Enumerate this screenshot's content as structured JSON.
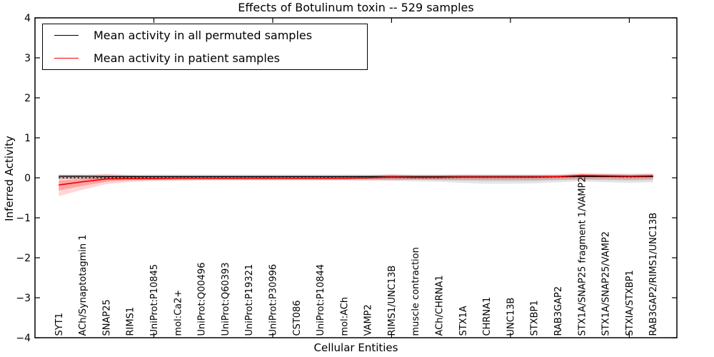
{
  "title": "Effects of Botulinum toxin -- 529 samples",
  "legend": {
    "items": [
      {
        "label": "Mean activity in all permuted samples",
        "color": "#000000"
      },
      {
        "label": "Mean activity in patient samples",
        "color": "#ff0000"
      }
    ]
  },
  "chart_data": {
    "type": "line",
    "title": "Effects of Botulinum toxin -- 529 samples",
    "xlabel": "Cellular Entities",
    "ylabel": "Inferred Activity",
    "ylim": [
      -4,
      4
    ],
    "xlim": [
      0,
      27
    ],
    "grid": false,
    "legend_position": "upper left",
    "ytick_values": [
      4,
      3,
      2,
      1,
      0,
      -1,
      -2,
      -3,
      -4
    ],
    "ytick_labels": [
      "4",
      "3",
      "2",
      "1",
      "0",
      "−1",
      "−2",
      "−3",
      "−4"
    ],
    "xtick_values": [
      5,
      10,
      15,
      20,
      25
    ],
    "categories": [
      "SYT1",
      "ACh/Synaptotagmin 1",
      "SNAP25",
      "RIMS1",
      "UniProt:P10845",
      "mol:Ca2+",
      "UniProt:Q00496",
      "UniProt:Q60393",
      "UniProt:P19321",
      "UniProt:P30996",
      "CST086",
      "UniProt:P10844",
      "mol:ACh",
      "VAMP2",
      "RIMS1/UNC13B",
      "muscle contraction",
      "ACh/CHRNA1",
      "STX1A",
      "CHRNA1",
      "UNC13B",
      "STXBP1",
      "RAB3GAP2",
      "STX1A/SNAP25 fragment 1/VAMP2",
      "STX1A/SNAP25/VAMP2",
      "STXIA/STXBP1",
      "RAB3GAP2/RIMS1/UNC13B"
    ],
    "series": [
      {
        "name": "Mean activity in all permuted samples",
        "color": "#000000",
        "style": "solid",
        "width": 1.3,
        "values": [
          0.04,
          0.04,
          0.03,
          0.03,
          0.03,
          0.03,
          0.03,
          0.03,
          0.03,
          0.03,
          0.03,
          0.03,
          0.03,
          0.03,
          0.03,
          0.03,
          0.03,
          0.03,
          0.03,
          0.03,
          0.03,
          0.03,
          0.03,
          0.03,
          0.03,
          0.03
        ]
      },
      {
        "name": "dotted-reference",
        "color": "#000000",
        "style": "dotted",
        "width": 1.4,
        "values": [
          0,
          0,
          0,
          0,
          0,
          0,
          0,
          0,
          0,
          0,
          0,
          0,
          0,
          0,
          0.01,
          0,
          0,
          0.01,
          0.01,
          0.01,
          0.01,
          0.02,
          0.03,
          0.03,
          0.02,
          0.03
        ]
      },
      {
        "name": "Mean activity in patient samples",
        "color": "#ee0000",
        "style": "solid",
        "width": 1.6,
        "values": [
          -0.18,
          -0.1,
          -0.03,
          -0.02,
          -0.02,
          -0.01,
          -0.01,
          -0.01,
          -0.01,
          -0.01,
          -0.01,
          -0.01,
          -0.01,
          0.0,
          0.02,
          0.01,
          0.01,
          0.02,
          0.02,
          0.02,
          0.02,
          0.03,
          0.06,
          0.05,
          0.04,
          0.05
        ]
      }
    ],
    "bands": [
      {
        "name": "permuted-range-outer",
        "color": "#000000",
        "opacity": 0.1,
        "upper": [
          0.09,
          0.09,
          0.08,
          0.08,
          0.08,
          0.08,
          0.08,
          0.08,
          0.08,
          0.08,
          0.08,
          0.08,
          0.08,
          0.08,
          0.08,
          0.08,
          0.08,
          0.08,
          0.08,
          0.08,
          0.08,
          0.08,
          0.08,
          0.09,
          0.09,
          0.09
        ],
        "lower": [
          -0.03,
          -0.04,
          -0.05,
          -0.06,
          -0.06,
          -0.06,
          -0.06,
          -0.06,
          -0.06,
          -0.06,
          -0.06,
          -0.06,
          -0.06,
          -0.07,
          -0.08,
          -0.09,
          -0.1,
          -0.13,
          -0.15,
          -0.15,
          -0.14,
          -0.11,
          -0.09,
          -0.11,
          -0.13,
          -0.11
        ]
      },
      {
        "name": "permuted-range-inner",
        "color": "#000000",
        "opacity": 0.12,
        "upper": [
          0.06,
          0.06,
          0.06,
          0.06,
          0.06,
          0.06,
          0.06,
          0.06,
          0.06,
          0.06,
          0.06,
          0.06,
          0.06,
          0.06,
          0.06,
          0.06,
          0.06,
          0.06,
          0.06,
          0.06,
          0.06,
          0.06,
          0.06,
          0.06,
          0.06,
          0.06
        ],
        "lower": [
          -0.01,
          -0.02,
          -0.02,
          -0.03,
          -0.03,
          -0.03,
          -0.03,
          -0.03,
          -0.03,
          -0.03,
          -0.03,
          -0.03,
          -0.03,
          -0.04,
          -0.05,
          -0.05,
          -0.06,
          -0.07,
          -0.08,
          -0.08,
          -0.08,
          -0.06,
          -0.05,
          -0.06,
          -0.07,
          -0.06
        ]
      },
      {
        "name": "patient-range-outer",
        "color": "#ff0000",
        "opacity": 0.16,
        "upper": [
          0.05,
          0.05,
          0.1,
          0.06,
          0.04,
          0.04,
          0.04,
          0.04,
          0.04,
          0.04,
          0.04,
          0.04,
          0.04,
          0.05,
          0.09,
          0.06,
          0.06,
          0.08,
          0.07,
          0.07,
          0.07,
          0.08,
          0.12,
          0.11,
          0.1,
          0.11
        ],
        "lower": [
          -0.46,
          -0.3,
          -0.16,
          -0.1,
          -0.08,
          -0.07,
          -0.06,
          -0.06,
          -0.06,
          -0.06,
          -0.06,
          -0.06,
          -0.06,
          -0.06,
          -0.06,
          -0.05,
          -0.05,
          -0.05,
          -0.05,
          -0.05,
          -0.05,
          -0.04,
          -0.03,
          -0.03,
          -0.04,
          -0.03
        ]
      },
      {
        "name": "patient-range-inner",
        "color": "#ff0000",
        "opacity": 0.24,
        "upper": [
          -0.07,
          -0.03,
          0.04,
          0.02,
          0.01,
          0.01,
          0.01,
          0.01,
          0.01,
          0.01,
          0.01,
          0.01,
          0.01,
          0.02,
          0.05,
          0.03,
          0.03,
          0.04,
          0.04,
          0.04,
          0.04,
          0.05,
          0.09,
          0.08,
          0.07,
          0.08
        ],
        "lower": [
          -0.32,
          -0.2,
          -0.1,
          -0.06,
          -0.05,
          -0.04,
          -0.04,
          -0.04,
          -0.04,
          -0.04,
          -0.04,
          -0.04,
          -0.04,
          -0.03,
          -0.02,
          -0.02,
          -0.02,
          -0.01,
          -0.01,
          -0.01,
          -0.01,
          0.0,
          0.02,
          0.02,
          0.01,
          0.02
        ]
      }
    ]
  }
}
